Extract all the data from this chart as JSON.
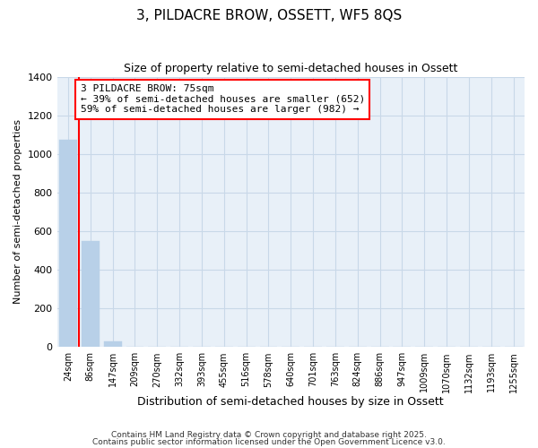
{
  "title": "3, PILDACRE BROW, OSSETT, WF5 8QS",
  "subtitle": "Size of property relative to semi-detached houses in Ossett",
  "xlabel": "Distribution of semi-detached houses by size in Ossett",
  "ylabel": "Number of semi-detached properties",
  "categories": [
    "24sqm",
    "86sqm",
    "147sqm",
    "209sqm",
    "270sqm",
    "332sqm",
    "393sqm",
    "455sqm",
    "516sqm",
    "578sqm",
    "640sqm",
    "701sqm",
    "763sqm",
    "824sqm",
    "886sqm",
    "947sqm",
    "1009sqm",
    "1070sqm",
    "1132sqm",
    "1193sqm",
    "1255sqm"
  ],
  "values": [
    1075,
    550,
    30,
    0,
    0,
    0,
    0,
    0,
    0,
    0,
    0,
    0,
    0,
    0,
    0,
    0,
    0,
    0,
    0,
    0,
    0
  ],
  "bar_color": "#b8d0e8",
  "red_line_x": 0.5,
  "annotation_text": "3 PILDACRE BROW: 75sqm\n← 39% of semi-detached houses are smaller (652)\n59% of semi-detached houses are larger (982) →",
  "ylim": [
    0,
    1400
  ],
  "yticks": [
    0,
    200,
    400,
    600,
    800,
    1000,
    1200,
    1400
  ],
  "footer_line1": "Contains HM Land Registry data © Crown copyright and database right 2025.",
  "footer_line2": "Contains public sector information licensed under the Open Government Licence v3.0.",
  "background_color": "#ffffff",
  "plot_bg_color": "#e8f0f8",
  "grid_color": "#c8d8e8",
  "title_fontsize": 11,
  "subtitle_fontsize": 9,
  "annotation_fontsize": 8
}
